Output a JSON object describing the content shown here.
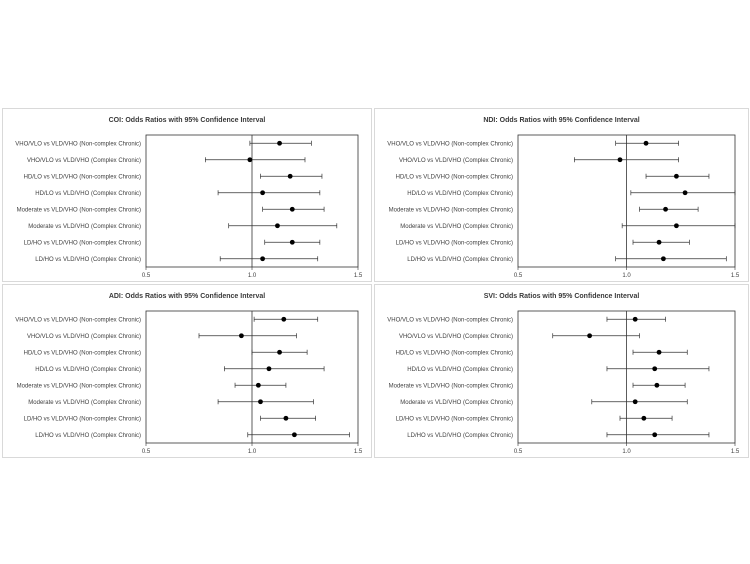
{
  "chart_data": [
    {
      "type": "forest",
      "title": "COI: Odds Ratios with 95% Confidence Interval",
      "xlim": [
        0.5,
        1.5
      ],
      "xticks": [
        "0.5",
        "1.0",
        "1.5"
      ],
      "reference_line": 1.0,
      "rows": [
        {
          "label": "VHO/VLO vs VLD/VHO (Non-complex Chronic)",
          "or": 1.13,
          "lo": 0.99,
          "hi": 1.28
        },
        {
          "label": "VHO/VLO vs VLD/VHO (Complex Chronic)",
          "or": 0.99,
          "lo": 0.78,
          "hi": 1.25
        },
        {
          "label": "HD/LO vs VLD/VHO (Non-complex Chronic)",
          "or": 1.18,
          "lo": 1.04,
          "hi": 1.33
        },
        {
          "label": "HD/LO vs VLD/VHO (Complex Chronic)",
          "or": 1.05,
          "lo": 0.84,
          "hi": 1.32
        },
        {
          "label": "Moderate vs VLD/VHO (Non-complex Chronic)",
          "or": 1.19,
          "lo": 1.05,
          "hi": 1.34
        },
        {
          "label": "Moderate vs VLD/VHO (Complex Chronic)",
          "or": 1.12,
          "lo": 0.89,
          "hi": 1.4
        },
        {
          "label": "LD/HO vs VLD/VHO (Non-complex Chronic)",
          "or": 1.19,
          "lo": 1.06,
          "hi": 1.32
        },
        {
          "label": "LD/HO vs VLD/VHO (Complex Chronic)",
          "or": 1.05,
          "lo": 0.85,
          "hi": 1.31
        }
      ]
    },
    {
      "type": "forest",
      "title": "NDI: Odds Ratios with 95% Confidence Interval",
      "xlim": [
        0.5,
        1.5
      ],
      "xticks": [
        "0.5",
        "1.0",
        "1.5"
      ],
      "reference_line": 1.0,
      "rows": [
        {
          "label": "VHO/VLO vs VLD/VHO (Non-complex Chronic)",
          "or": 1.09,
          "lo": 0.95,
          "hi": 1.24
        },
        {
          "label": "VHO/VLO vs VLD/VHO (Complex Chronic)",
          "or": 0.97,
          "lo": 0.76,
          "hi": 1.24
        },
        {
          "label": "HD/LO vs VLD/VHO (Non-complex Chronic)",
          "or": 1.23,
          "lo": 1.09,
          "hi": 1.38
        },
        {
          "label": "HD/LO vs VLD/VHO (Complex Chronic)",
          "or": 1.27,
          "lo": 1.02,
          "hi": 1.5
        },
        {
          "label": "Moderate vs VLD/VHO (Non-complex Chronic)",
          "or": 1.18,
          "lo": 1.06,
          "hi": 1.33
        },
        {
          "label": "Moderate vs VLD/VHO (Complex Chronic)",
          "or": 1.23,
          "lo": 0.98,
          "hi": 1.52
        },
        {
          "label": "LD/HO vs VLD/VHO (Non-complex Chronic)",
          "or": 1.15,
          "lo": 1.03,
          "hi": 1.29
        },
        {
          "label": "LD/HO vs VLD/VHO (Complex Chronic)",
          "or": 1.17,
          "lo": 0.95,
          "hi": 1.46
        }
      ]
    },
    {
      "type": "forest",
      "title": "ADI: Odds Ratios with 95% Confidence Interval",
      "xlim": [
        0.5,
        1.5
      ],
      "xticks": [
        "0.5",
        "1.0",
        "1.5"
      ],
      "reference_line": 1.0,
      "rows": [
        {
          "label": "VHO/VLO vs VLD/VHO (Non-complex Chronic)",
          "or": 1.15,
          "lo": 1.01,
          "hi": 1.31
        },
        {
          "label": "VHO/VLO vs VLD/VHO (Complex Chronic)",
          "or": 0.95,
          "lo": 0.75,
          "hi": 1.21
        },
        {
          "label": "HD/LO vs VLD/VHO (Non-complex Chronic)",
          "or": 1.13,
          "lo": 1.0,
          "hi": 1.26
        },
        {
          "label": "HD/LO vs VLD/VHO (Complex Chronic)",
          "or": 1.08,
          "lo": 0.87,
          "hi": 1.34
        },
        {
          "label": "Moderate vs VLD/VHO (Non-complex Chronic)",
          "or": 1.03,
          "lo": 0.92,
          "hi": 1.16
        },
        {
          "label": "Moderate vs VLD/VHO (Complex Chronic)",
          "or": 1.04,
          "lo": 0.84,
          "hi": 1.29
        },
        {
          "label": "LD/HO vs VLD/VHO (Non-complex Chronic)",
          "or": 1.16,
          "lo": 1.04,
          "hi": 1.3
        },
        {
          "label": "LD/HO vs VLD/VHO (Complex Chronic)",
          "or": 1.2,
          "lo": 0.98,
          "hi": 1.46
        }
      ]
    },
    {
      "type": "forest",
      "title": "SVI: Odds Ratios with 95% Confidence Interval",
      "xlim": [
        0.5,
        1.5
      ],
      "xticks": [
        "0.5",
        "1.0",
        "1.5"
      ],
      "reference_line": 1.0,
      "rows": [
        {
          "label": "VHO/VLO vs VLD/VHO (Non-complex Chronic)",
          "or": 1.04,
          "lo": 0.91,
          "hi": 1.18
        },
        {
          "label": "VHO/VLO vs VLD/VHO (Complex Chronic)",
          "or": 0.83,
          "lo": 0.66,
          "hi": 1.06
        },
        {
          "label": "HD/LO vs VLD/VHO (Non-complex Chronic)",
          "or": 1.15,
          "lo": 1.03,
          "hi": 1.28
        },
        {
          "label": "HD/LO vs VLD/VHO (Complex Chronic)",
          "or": 1.13,
          "lo": 0.91,
          "hi": 1.38
        },
        {
          "label": "Moderate vs VLD/VHO (Non-complex Chronic)",
          "or": 1.14,
          "lo": 1.03,
          "hi": 1.27
        },
        {
          "label": "Moderate vs VLD/VHO (Complex Chronic)",
          "or": 1.04,
          "lo": 0.84,
          "hi": 1.28
        },
        {
          "label": "LD/HO vs VLD/VHO (Non-complex Chronic)",
          "or": 1.08,
          "lo": 0.97,
          "hi": 1.21
        },
        {
          "label": "LD/HO vs VLD/VHO (Complex Chronic)",
          "or": 1.13,
          "lo": 0.91,
          "hi": 1.38
        }
      ]
    }
  ]
}
